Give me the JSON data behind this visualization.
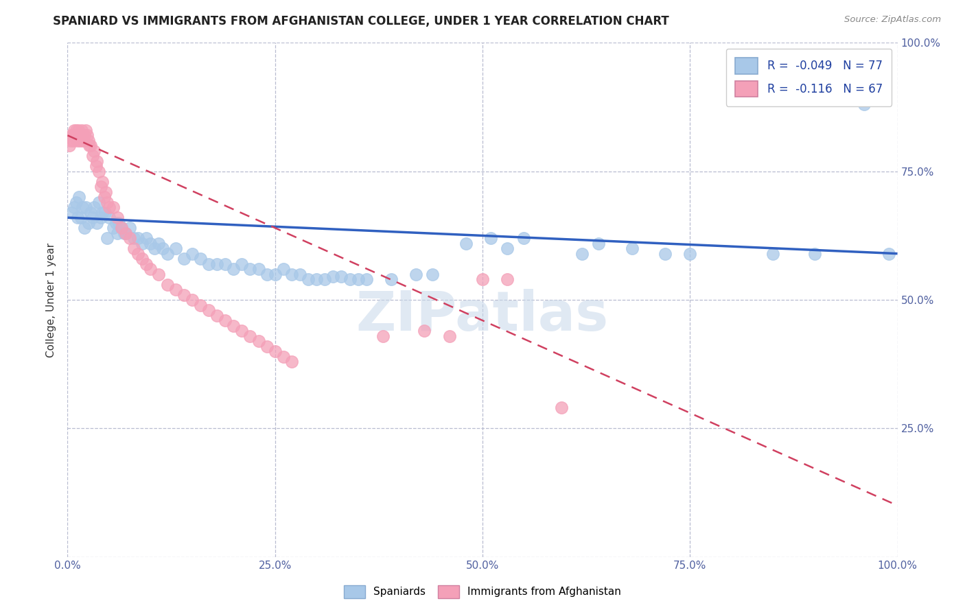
{
  "title": "SPANIARD VS IMMIGRANTS FROM AFGHANISTAN COLLEGE, UNDER 1 YEAR CORRELATION CHART",
  "source_text": "Source: ZipAtlas.com",
  "ylabel": "College, Under 1 year",
  "xlim": [
    0.0,
    1.0
  ],
  "ylim": [
    0.0,
    1.0
  ],
  "series1_color": "#a8c8e8",
  "series2_color": "#f4a0b8",
  "line1_color": "#3060c0",
  "line2_color": "#d04060",
  "watermark_text": "ZIPatlas",
  "legend_label1": "R =  -0.049   N = 77",
  "legend_label2": "R =  -0.116   N = 67",
  "bottom_legend_label1": "Spaniards",
  "bottom_legend_label2": "Immigrants from Afghanistan",
  "spaniards_x": [
    0.005,
    0.008,
    0.01,
    0.012,
    0.014,
    0.016,
    0.018,
    0.02,
    0.022,
    0.025,
    0.028,
    0.03,
    0.032,
    0.035,
    0.038,
    0.04,
    0.042,
    0.045,
    0.048,
    0.05,
    0.055,
    0.058,
    0.06,
    0.062,
    0.065,
    0.068,
    0.07,
    0.075,
    0.08,
    0.085,
    0.09,
    0.095,
    0.1,
    0.105,
    0.11,
    0.115,
    0.12,
    0.13,
    0.14,
    0.15,
    0.16,
    0.17,
    0.18,
    0.19,
    0.2,
    0.21,
    0.22,
    0.23,
    0.24,
    0.25,
    0.26,
    0.27,
    0.28,
    0.29,
    0.3,
    0.31,
    0.32,
    0.33,
    0.34,
    0.35,
    0.36,
    0.39,
    0.42,
    0.44,
    0.48,
    0.51,
    0.53,
    0.55,
    0.62,
    0.64,
    0.68,
    0.72,
    0.75,
    0.85,
    0.9,
    0.96,
    0.99
  ],
  "spaniards_y": [
    0.67,
    0.68,
    0.69,
    0.66,
    0.7,
    0.66,
    0.68,
    0.64,
    0.68,
    0.65,
    0.67,
    0.66,
    0.68,
    0.65,
    0.69,
    0.66,
    0.67,
    0.67,
    0.62,
    0.66,
    0.64,
    0.65,
    0.63,
    0.65,
    0.64,
    0.63,
    0.63,
    0.64,
    0.62,
    0.62,
    0.61,
    0.62,
    0.61,
    0.6,
    0.61,
    0.6,
    0.59,
    0.6,
    0.58,
    0.59,
    0.58,
    0.57,
    0.57,
    0.57,
    0.56,
    0.57,
    0.56,
    0.56,
    0.55,
    0.55,
    0.56,
    0.55,
    0.55,
    0.54,
    0.54,
    0.54,
    0.545,
    0.545,
    0.54,
    0.54,
    0.54,
    0.54,
    0.55,
    0.55,
    0.61,
    0.62,
    0.6,
    0.62,
    0.59,
    0.61,
    0.6,
    0.59,
    0.59,
    0.59,
    0.59,
    0.88,
    0.59
  ],
  "afghanistan_x": [
    0.002,
    0.004,
    0.005,
    0.006,
    0.007,
    0.008,
    0.009,
    0.01,
    0.011,
    0.012,
    0.013,
    0.014,
    0.015,
    0.016,
    0.017,
    0.018,
    0.019,
    0.02,
    0.022,
    0.024,
    0.025,
    0.026,
    0.028,
    0.03,
    0.032,
    0.034,
    0.035,
    0.038,
    0.04,
    0.042,
    0.044,
    0.046,
    0.048,
    0.05,
    0.055,
    0.06,
    0.065,
    0.07,
    0.075,
    0.08,
    0.085,
    0.09,
    0.095,
    0.1,
    0.11,
    0.12,
    0.13,
    0.14,
    0.15,
    0.16,
    0.17,
    0.18,
    0.19,
    0.2,
    0.21,
    0.22,
    0.23,
    0.24,
    0.25,
    0.26,
    0.27,
    0.38,
    0.43,
    0.46,
    0.5,
    0.53,
    0.595
  ],
  "afghanistan_y": [
    0.8,
    0.81,
    0.82,
    0.82,
    0.81,
    0.83,
    0.82,
    0.83,
    0.82,
    0.81,
    0.83,
    0.82,
    0.81,
    0.82,
    0.83,
    0.82,
    0.81,
    0.82,
    0.83,
    0.82,
    0.81,
    0.8,
    0.8,
    0.78,
    0.79,
    0.76,
    0.77,
    0.75,
    0.72,
    0.73,
    0.7,
    0.71,
    0.69,
    0.68,
    0.68,
    0.66,
    0.64,
    0.63,
    0.62,
    0.6,
    0.59,
    0.58,
    0.57,
    0.56,
    0.55,
    0.53,
    0.52,
    0.51,
    0.5,
    0.49,
    0.48,
    0.47,
    0.46,
    0.45,
    0.44,
    0.43,
    0.42,
    0.41,
    0.4,
    0.39,
    0.38,
    0.43,
    0.44,
    0.43,
    0.54,
    0.54,
    0.29
  ],
  "line1_x": [
    0.0,
    1.0
  ],
  "line1_y": [
    0.66,
    0.59
  ],
  "line2_x": [
    0.0,
    1.0
  ],
  "line2_y": [
    0.82,
    0.1
  ]
}
